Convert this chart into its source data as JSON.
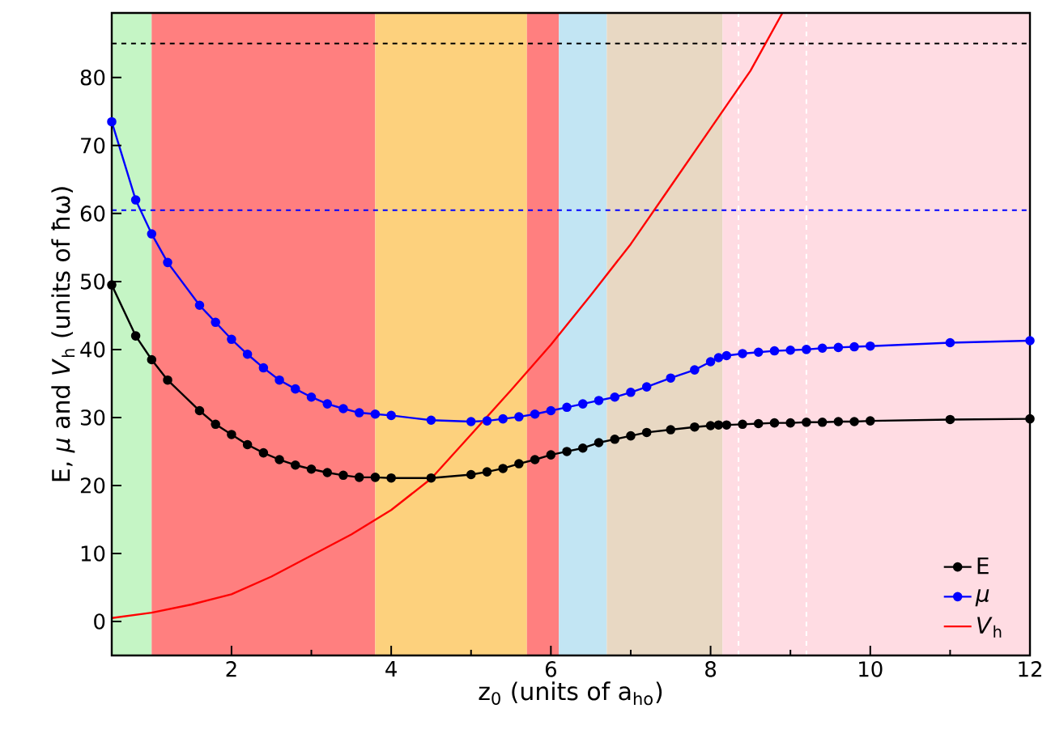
{
  "chart_data": {
    "type": "line",
    "xlabel": "z$_{0}$ (units of a$_{ho}$)",
    "ylabel": "E, *μ* and *V*$_{h}$ (units of ħω)",
    "xlim": [
      0.5,
      12
    ],
    "ylim": [
      -5,
      89.5
    ],
    "xticks": [
      2,
      4,
      6,
      8,
      10,
      12
    ],
    "yticks": [
      0,
      10,
      20,
      30,
      40,
      50,
      60,
      70,
      80
    ],
    "legend": "bottom right",
    "grid": false,
    "series": [
      {
        "name": "E",
        "color": "#000000",
        "marker": "circle",
        "x": [
          0.5,
          0.8,
          1.0,
          1.2,
          1.6,
          1.8,
          2.0,
          2.2,
          2.4,
          2.6,
          2.8,
          3.0,
          3.2,
          3.4,
          3.6,
          3.8,
          4.0,
          4.5,
          5.0,
          5.2,
          5.4,
          5.6,
          5.8,
          6.0,
          6.2,
          6.4,
          6.6,
          6.8,
          7.0,
          7.2,
          7.5,
          7.8,
          8.0,
          8.1,
          8.2,
          8.4,
          8.6,
          8.8,
          9.0,
          9.2,
          9.4,
          9.6,
          9.8,
          10,
          11,
          12
        ],
        "values": [
          49.5,
          42,
          38.5,
          35.5,
          31,
          29,
          27.5,
          26,
          24.8,
          23.8,
          23,
          22.4,
          21.9,
          21.5,
          21.2,
          21.2,
          21.1,
          21.1,
          21.6,
          22,
          22.5,
          23.2,
          23.8,
          24.5,
          25,
          25.5,
          26.3,
          26.8,
          27.3,
          27.8,
          28.2,
          28.6,
          28.8,
          28.9,
          28.9,
          29,
          29.1,
          29.2,
          29.2,
          29.3,
          29.3,
          29.4,
          29.4,
          29.5,
          29.7,
          29.8
        ]
      },
      {
        "name": "*μ*",
        "color": "#0000ff",
        "marker": "circle",
        "x": [
          0.5,
          0.8,
          1.0,
          1.2,
          1.6,
          1.8,
          2.0,
          2.2,
          2.4,
          2.6,
          2.8,
          3.0,
          3.2,
          3.4,
          3.6,
          3.8,
          4.0,
          4.5,
          5.0,
          5.2,
          5.4,
          5.6,
          5.8,
          6.0,
          6.2,
          6.4,
          6.6,
          6.8,
          7.0,
          7.2,
          7.5,
          7.8,
          8.0,
          8.1,
          8.2,
          8.4,
          8.6,
          8.8,
          9.0,
          9.2,
          9.4,
          9.6,
          9.8,
          10,
          11,
          12
        ],
        "values": [
          73.5,
          62,
          57,
          52.8,
          46.5,
          44,
          41.5,
          39.3,
          37.3,
          35.5,
          34.2,
          33,
          32,
          31.3,
          30.7,
          30.5,
          30.3,
          29.6,
          29.4,
          29.5,
          29.8,
          30.1,
          30.5,
          31,
          31.5,
          32,
          32.5,
          33,
          33.7,
          34.5,
          35.8,
          37,
          38.2,
          38.8,
          39.1,
          39.4,
          39.6,
          39.8,
          39.9,
          40,
          40.2,
          40.3,
          40.4,
          40.5,
          41,
          41.3
        ]
      },
      {
        "name": "*V*$_{h}$",
        "color": "#ff0000",
        "marker": "none",
        "x": [
          0.5,
          1.0,
          1.5,
          2.0,
          2.5,
          3.0,
          3.5,
          4.0,
          4.5,
          5.0,
          5.5,
          6.0,
          6.5,
          7.0,
          7.5,
          8.0,
          8.5,
          8.9
        ],
        "values": [
          0.5,
          1.3,
          2.5,
          4,
          6.6,
          9.7,
          12.8,
          16.4,
          21,
          27.5,
          34,
          40.7,
          48,
          55.5,
          64,
          72.5,
          81,
          89.5
        ]
      }
    ],
    "ref_lines": [
      {
        "axis": "y",
        "value": 85,
        "color": "#000000",
        "line_style": "dashed"
      },
      {
        "axis": "y",
        "value": 60.5,
        "color": "#0000ff",
        "line_style": "dashed"
      },
      {
        "axis": "x",
        "value": 8.35,
        "color": "#ffffff",
        "line_style": "dashed"
      },
      {
        "axis": "x",
        "value": 9.2,
        "color": "#ffffff",
        "line_style": "dashed"
      }
    ],
    "bands": [
      {
        "axis": "x",
        "from": 0.5,
        "to": 1.0,
        "color": "#c5f5c5"
      },
      {
        "axis": "x",
        "from": 1.0,
        "to": 3.8,
        "color": "#ff7f7f"
      },
      {
        "axis": "x",
        "from": 3.8,
        "to": 5.7,
        "color": "#fdd17d"
      },
      {
        "axis": "x",
        "from": 5.7,
        "to": 6.1,
        "color": "#ff7f7f"
      },
      {
        "axis": "x",
        "from": 6.1,
        "to": 6.7,
        "color": "#c2e5f3"
      },
      {
        "axis": "x",
        "from": 6.7,
        "to": 8.15,
        "color": "#e8d8c3"
      },
      {
        "axis": "x",
        "from": 8.15,
        "to": 12,
        "color": "#ffdce3"
      }
    ]
  }
}
